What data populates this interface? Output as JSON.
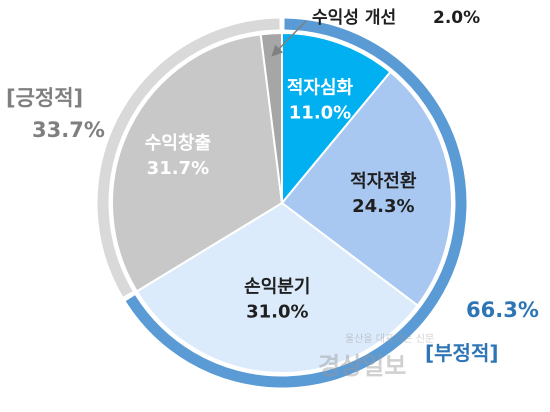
{
  "chart_data": {
    "type": "pie",
    "slices": [
      {
        "label": "적자심화",
        "value_text": "11.0%",
        "value": 11.0,
        "color": "#00b0f0",
        "label_color": "#ffffff"
      },
      {
        "label": "적자전환",
        "value_text": "24.3%",
        "value": 24.3,
        "color": "#a8c8f2",
        "label_color": "#1f1f1f"
      },
      {
        "label": "손익분기",
        "value_text": "31.0%",
        "value": 31.0,
        "color": "#dcebfb",
        "label_color": "#1f1f1f"
      },
      {
        "label": "수익창출",
        "value_text": "31.7%",
        "value": 31.7,
        "color": "#c8c8c8",
        "label_color": "#ffffff"
      },
      {
        "label": "수익성 개선",
        "value_text": "2.0%",
        "value": 2.0,
        "color": "#a6a6a6",
        "label_color": "#1f1f1f"
      }
    ],
    "groups": [
      {
        "name": "[긍정적]",
        "value_text": "33.7%",
        "value": 33.7,
        "color": "#d9d9d9",
        "text_color": "#7f7f7f"
      },
      {
        "name": "[부정적]",
        "value_text": "66.3%",
        "value": 66.3,
        "color": "#5b9bd5",
        "text_color": "#2e75b6"
      }
    ]
  },
  "watermark": {
    "text": "경상일보",
    "subtext": "울산을 대표하는 신문"
  }
}
